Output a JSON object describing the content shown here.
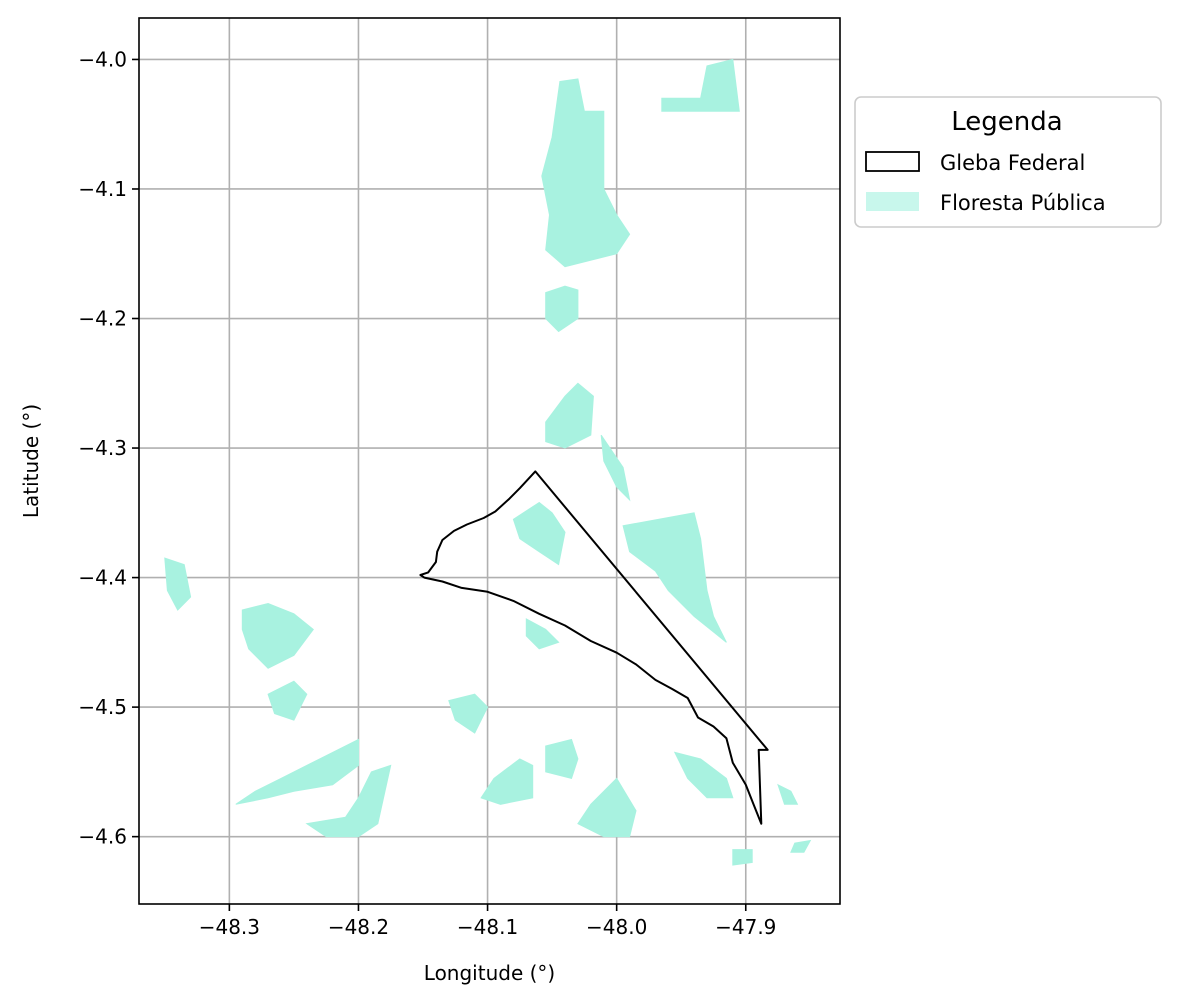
{
  "chart_data": {
    "type": "map",
    "xlabel": "Longitude (°)",
    "ylabel": "Latitude (°)",
    "xlim": [
      -48.37,
      -47.827
    ],
    "ylim": [
      -4.652,
      -3.968
    ],
    "xticks": [
      -48.3,
      -48.2,
      -48.1,
      -48.0,
      -47.9
    ],
    "xtick_labels": [
      "−48.3",
      "−48.2",
      "−48.1",
      "−48.0",
      "−47.9"
    ],
    "yticks": [
      -4.0,
      -4.1,
      -4.2,
      -4.3,
      -4.4,
      -4.5,
      -4.6
    ],
    "ytick_labels": [
      "−4.0",
      "−4.1",
      "−4.2",
      "−4.3",
      "−4.4",
      "−4.5",
      "−4.6"
    ],
    "grid": true,
    "legend": {
      "title": "Legenda",
      "placement": "outside-right-top",
      "items": [
        {
          "label": "Gleba Federal",
          "kind": "outline"
        },
        {
          "label": "Floresta Pública",
          "kind": "fill"
        }
      ]
    },
    "colors": {
      "forest_fill": "#a8f2e0",
      "forest_legend": "#c8f7ec",
      "gleba_stroke": "#000000"
    },
    "gleba_federal": [
      [
        -48.063,
        -4.318
      ],
      [
        -48.075,
        -4.331
      ],
      [
        -48.083,
        -4.339
      ],
      [
        -48.094,
        -4.349
      ],
      [
        -48.103,
        -4.354
      ],
      [
        -48.116,
        -4.359
      ],
      [
        -48.126,
        -4.364
      ],
      [
        -48.135,
        -4.371
      ],
      [
        -48.139,
        -4.38
      ],
      [
        -48.14,
        -4.388
      ],
      [
        -48.146,
        -4.396
      ],
      [
        -48.152,
        -4.398
      ],
      [
        -48.149,
        -4.4
      ],
      [
        -48.135,
        -4.403
      ],
      [
        -48.12,
        -4.408
      ],
      [
        -48.1,
        -4.411
      ],
      [
        -48.08,
        -4.418
      ],
      [
        -48.06,
        -4.428
      ],
      [
        -48.04,
        -4.437
      ],
      [
        -48.02,
        -4.449
      ],
      [
        -48.0,
        -4.458
      ],
      [
        -47.985,
        -4.467
      ],
      [
        -47.97,
        -4.479
      ],
      [
        -47.957,
        -4.486
      ],
      [
        -47.945,
        -4.493
      ],
      [
        -47.937,
        -4.508
      ],
      [
        -47.925,
        -4.515
      ],
      [
        -47.915,
        -4.524
      ],
      [
        -47.91,
        -4.543
      ],
      [
        -47.9,
        -4.56
      ],
      [
        -47.894,
        -4.575
      ],
      [
        -47.888,
        -4.59
      ],
      [
        -47.89,
        -4.533
      ],
      [
        -47.883,
        -4.533
      ],
      [
        -48.063,
        -4.318
      ]
    ],
    "floresta_publica": [
      [
        [
          -48.044,
          -4.017
        ],
        [
          -48.03,
          -4.015
        ],
        [
          -48.025,
          -4.04
        ],
        [
          -48.01,
          -4.04
        ],
        [
          -48.01,
          -4.1
        ],
        [
          -48.0,
          -4.12
        ],
        [
          -47.99,
          -4.135
        ],
        [
          -48.0,
          -4.15
        ],
        [
          -48.04,
          -4.16
        ],
        [
          -48.055,
          -4.147
        ],
        [
          -48.052,
          -4.12
        ],
        [
          -48.058,
          -4.09
        ],
        [
          -48.05,
          -4.06
        ]
      ],
      [
        [
          -47.965,
          -4.03
        ],
        [
          -47.935,
          -4.03
        ],
        [
          -47.93,
          -4.005
        ],
        [
          -47.91,
          -4.0
        ],
        [
          -47.905,
          -4.04
        ],
        [
          -47.965,
          -4.04
        ]
      ],
      [
        [
          -48.055,
          -4.18
        ],
        [
          -48.04,
          -4.175
        ],
        [
          -48.03,
          -4.178
        ],
        [
          -48.03,
          -4.2
        ],
        [
          -48.045,
          -4.21
        ],
        [
          -48.055,
          -4.2
        ]
      ],
      [
        [
          -48.055,
          -4.28
        ],
        [
          -48.04,
          -4.26
        ],
        [
          -48.03,
          -4.25
        ],
        [
          -48.018,
          -4.26
        ],
        [
          -48.02,
          -4.29
        ],
        [
          -48.04,
          -4.3
        ],
        [
          -48.055,
          -4.295
        ]
      ],
      [
        [
          -48.012,
          -4.29
        ],
        [
          -47.995,
          -4.315
        ],
        [
          -47.99,
          -4.34
        ],
        [
          -48.0,
          -4.33
        ],
        [
          -48.01,
          -4.31
        ]
      ],
      [
        [
          -48.06,
          -4.342
        ],
        [
          -48.08,
          -4.355
        ],
        [
          -48.075,
          -4.37
        ],
        [
          -48.06,
          -4.38
        ],
        [
          -48.045,
          -4.39
        ],
        [
          -48.04,
          -4.365
        ],
        [
          -48.05,
          -4.35
        ]
      ],
      [
        [
          -47.995,
          -4.36
        ],
        [
          -47.94,
          -4.35
        ],
        [
          -47.935,
          -4.37
        ],
        [
          -47.93,
          -4.41
        ],
        [
          -47.925,
          -4.43
        ],
        [
          -47.915,
          -4.45
        ],
        [
          -47.94,
          -4.43
        ],
        [
          -47.96,
          -4.41
        ],
        [
          -47.97,
          -4.395
        ],
        [
          -47.99,
          -4.38
        ]
      ],
      [
        [
          -48.35,
          -4.385
        ],
        [
          -48.335,
          -4.39
        ],
        [
          -48.33,
          -4.415
        ],
        [
          -48.34,
          -4.425
        ],
        [
          -48.348,
          -4.41
        ]
      ],
      [
        [
          -48.29,
          -4.425
        ],
        [
          -48.27,
          -4.42
        ],
        [
          -48.25,
          -4.428
        ],
        [
          -48.235,
          -4.44
        ],
        [
          -48.25,
          -4.46
        ],
        [
          -48.27,
          -4.47
        ],
        [
          -48.285,
          -4.455
        ],
        [
          -48.29,
          -4.44
        ]
      ],
      [
        [
          -48.27,
          -4.49
        ],
        [
          -48.25,
          -4.48
        ],
        [
          -48.24,
          -4.49
        ],
        [
          -48.25,
          -4.51
        ],
        [
          -48.265,
          -4.505
        ]
      ],
      [
        [
          -48.07,
          -4.432
        ],
        [
          -48.055,
          -4.44
        ],
        [
          -48.045,
          -4.45
        ],
        [
          -48.06,
          -4.455
        ],
        [
          -48.07,
          -4.445
        ]
      ],
      [
        [
          -48.13,
          -4.495
        ],
        [
          -48.11,
          -4.49
        ],
        [
          -48.1,
          -4.5
        ],
        [
          -48.11,
          -4.52
        ],
        [
          -48.125,
          -4.51
        ]
      ],
      [
        [
          -48.2,
          -4.525
        ],
        [
          -48.23,
          -4.54
        ],
        [
          -48.26,
          -4.555
        ],
        [
          -48.28,
          -4.565
        ],
        [
          -48.295,
          -4.575
        ],
        [
          -48.27,
          -4.57
        ],
        [
          -48.25,
          -4.565
        ],
        [
          -48.22,
          -4.56
        ],
        [
          -48.2,
          -4.545
        ]
      ],
      [
        [
          -48.2,
          -4.57
        ],
        [
          -48.19,
          -4.55
        ],
        [
          -48.175,
          -4.545
        ],
        [
          -48.185,
          -4.59
        ],
        [
          -48.2,
          -4.6
        ],
        [
          -48.225,
          -4.6
        ],
        [
          -48.24,
          -4.59
        ],
        [
          -48.21,
          -4.585
        ]
      ],
      [
        [
          -48.095,
          -4.555
        ],
        [
          -48.075,
          -4.54
        ],
        [
          -48.065,
          -4.545
        ],
        [
          -48.065,
          -4.57
        ],
        [
          -48.09,
          -4.575
        ],
        [
          -48.105,
          -4.57
        ]
      ],
      [
        [
          -48.035,
          -4.525
        ],
        [
          -48.055,
          -4.53
        ],
        [
          -48.055,
          -4.55
        ],
        [
          -48.035,
          -4.555
        ],
        [
          -48.03,
          -4.54
        ]
      ],
      [
        [
          -48.0,
          -4.555
        ],
        [
          -48.02,
          -4.575
        ],
        [
          -48.03,
          -4.59
        ],
        [
          -48.01,
          -4.6
        ],
        [
          -47.99,
          -4.6
        ],
        [
          -47.985,
          -4.58
        ]
      ],
      [
        [
          -47.955,
          -4.535
        ],
        [
          -47.935,
          -4.54
        ],
        [
          -47.915,
          -4.555
        ],
        [
          -47.91,
          -4.57
        ],
        [
          -47.93,
          -4.57
        ],
        [
          -47.945,
          -4.555
        ]
      ],
      [
        [
          -47.875,
          -4.56
        ],
        [
          -47.865,
          -4.565
        ],
        [
          -47.86,
          -4.575
        ],
        [
          -47.87,
          -4.575
        ]
      ],
      [
        [
          -47.91,
          -4.61
        ],
        [
          -47.895,
          -4.61
        ],
        [
          -47.895,
          -4.62
        ],
        [
          -47.91,
          -4.622
        ]
      ],
      [
        [
          -47.862,
          -4.605
        ],
        [
          -47.85,
          -4.603
        ],
        [
          -47.855,
          -4.612
        ],
        [
          -47.865,
          -4.612
        ]
      ]
    ]
  }
}
